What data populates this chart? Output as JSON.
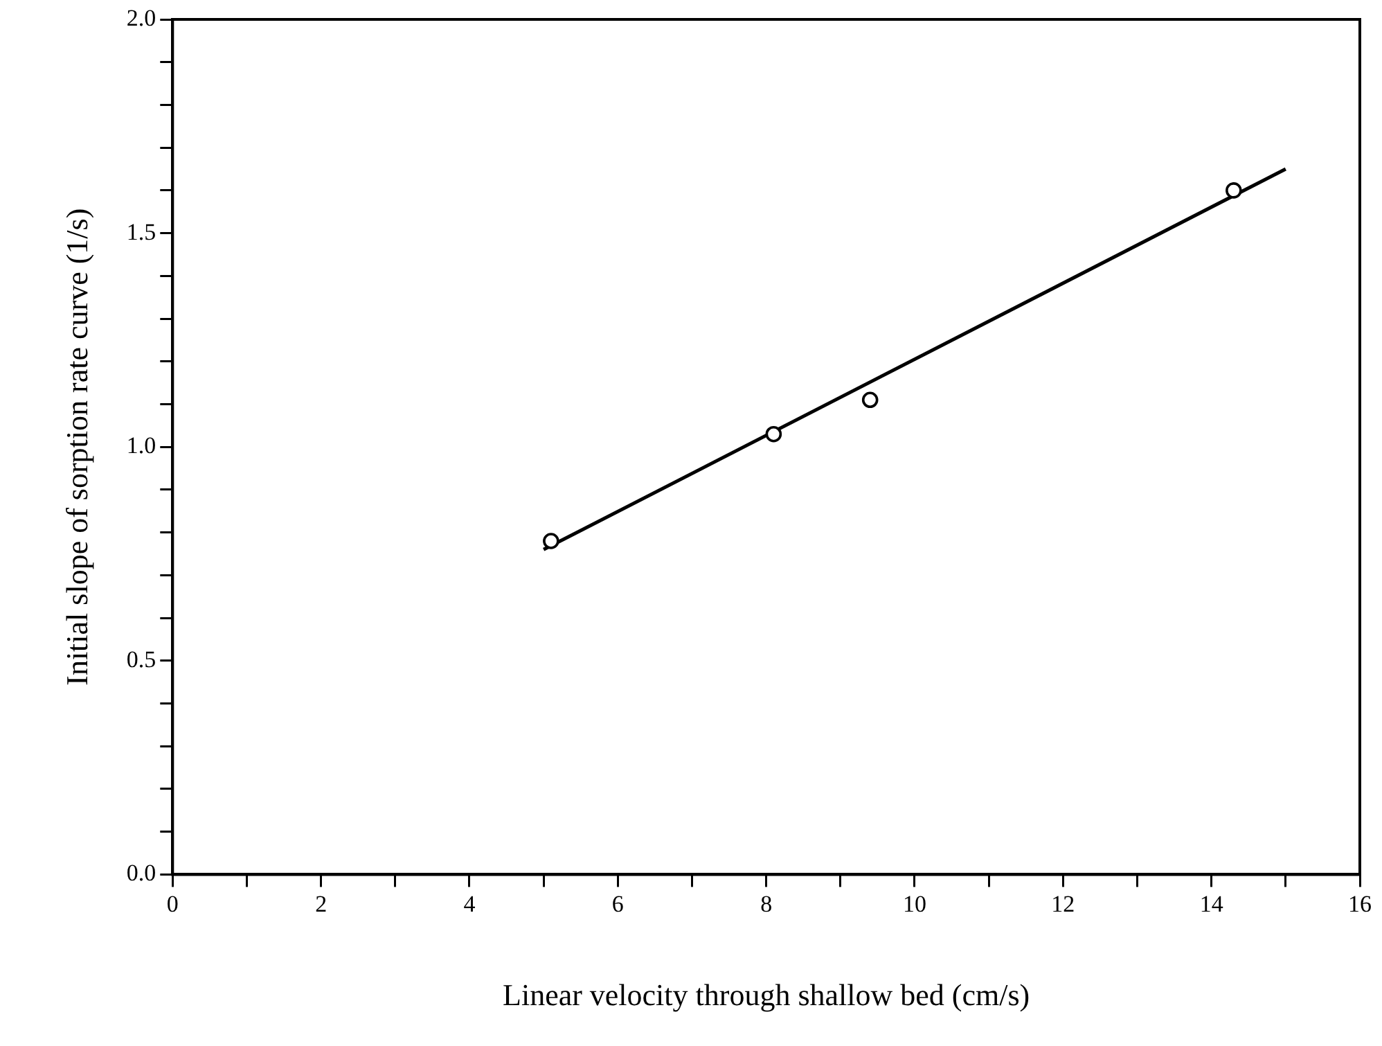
{
  "chart_data": {
    "type": "scatter",
    "xlabel": "Linear velocity through shallow bed (cm/s)",
    "ylabel": "Initial slope of sorption rate curve (1/s)",
    "xlim": [
      0,
      16
    ],
    "ylim": [
      0,
      2
    ],
    "xticks": [
      0,
      {
        "value": 1,
        "label": null
      },
      2,
      {
        "value": 3,
        "label": null
      },
      4,
      {
        "value": 5,
        "label": null
      },
      6,
      {
        "value": 7,
        "label": null
      },
      8,
      {
        "value": 9,
        "label": null
      },
      10,
      {
        "value": 11,
        "label": null
      },
      12,
      {
        "value": 13,
        "label": null
      },
      14,
      {
        "value": 15,
        "label": null
      },
      16
    ],
    "yticks": [
      {
        "value": 0,
        "label": "0.0"
      },
      {
        "value": 0.1,
        "label": null
      },
      {
        "value": 0.2,
        "label": null
      },
      {
        "value": 0.3,
        "label": null
      },
      {
        "value": 0.4,
        "label": null
      },
      {
        "value": 0.5,
        "label": "0.5"
      },
      {
        "value": 0.6,
        "label": null
      },
      {
        "value": 0.7,
        "label": null
      },
      {
        "value": 0.8,
        "label": null
      },
      {
        "value": 0.9,
        "label": null
      },
      {
        "value": 1.0,
        "label": "1.0"
      },
      {
        "value": 1.1,
        "label": null
      },
      {
        "value": 1.2,
        "label": null
      },
      {
        "value": 1.3,
        "label": null
      },
      {
        "value": 1.4,
        "label": null
      },
      {
        "value": 1.5,
        "label": "1.5"
      },
      {
        "value": 1.6,
        "label": null
      },
      {
        "value": 1.7,
        "label": null
      },
      {
        "value": 1.8,
        "label": null
      },
      {
        "value": 1.9,
        "label": null
      },
      {
        "value": 2.0,
        "label": "2.0"
      }
    ],
    "grid": false,
    "legend": false,
    "series": [
      {
        "type": "scatter",
        "color": "#000000",
        "marker": "circle",
        "x": [
          5.1,
          8.1,
          9.4,
          14.3
        ],
        "values": [
          0.78,
          1.03,
          1.11,
          1.6
        ]
      },
      {
        "type": "line",
        "color": "#000000",
        "marker": "none",
        "line_style": "solid",
        "x": [
          5.0,
          15.0
        ],
        "values": [
          0.76,
          1.65
        ]
      }
    ]
  }
}
